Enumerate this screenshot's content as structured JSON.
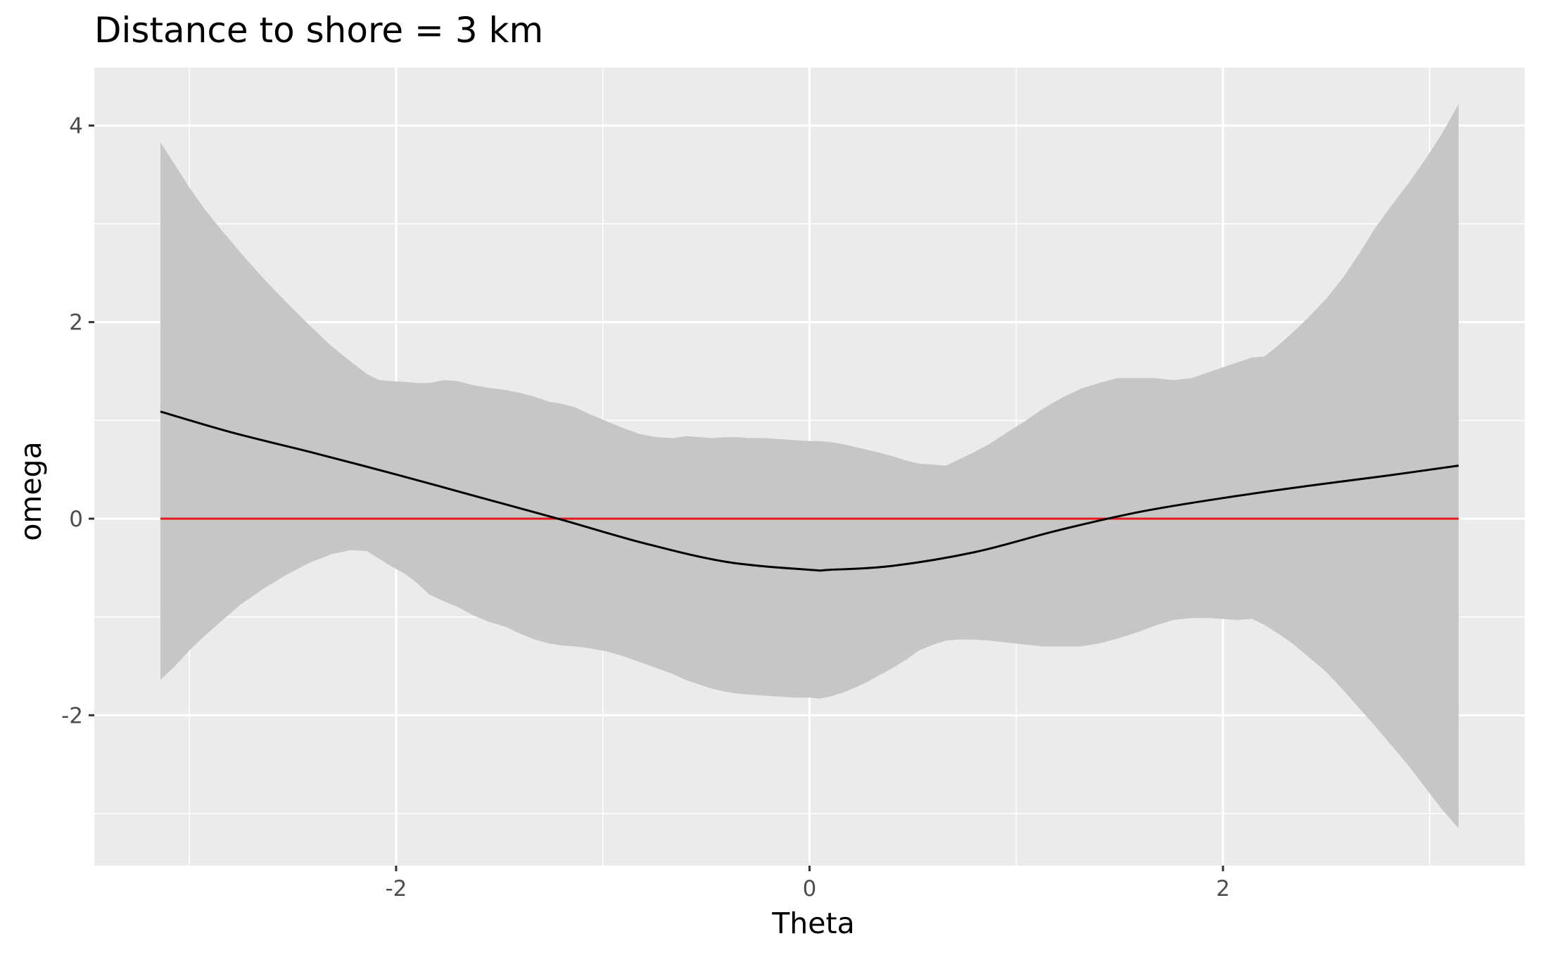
{
  "chart_data": {
    "type": "line",
    "title": "Distance to shore = 3 km",
    "xlabel": "Theta",
    "ylabel": "omega",
    "xlim": [
      -3.46,
      3.46
    ],
    "ylim": [
      -3.53,
      4.59
    ],
    "grid": true,
    "legend": "none",
    "x_ticks": [
      -2,
      0,
      2
    ],
    "x_tick_labels": [
      "-2",
      "0",
      "2"
    ],
    "y_ticks": [
      -2,
      0,
      2,
      4
    ],
    "y_tick_labels": [
      "-2",
      "0",
      "2",
      "4"
    ],
    "x_minor_ticks": [
      -3,
      -1,
      1,
      3
    ],
    "y_minor_ticks": [
      -3,
      -1,
      1,
      3
    ],
    "colors": {
      "panel": "#ebebeb",
      "grid": "#ffffff",
      "ribbon": "#c6c6c6",
      "fit_line": "#000000",
      "reference_line": "#e41a1c"
    },
    "reference_line": {
      "y": 0
    },
    "series": [
      {
        "x": [
          -3.14,
          -2.8,
          -2.4,
          -2.0,
          -1.6,
          -1.2,
          -0.8,
          -0.4,
          0.0,
          0.1,
          0.4,
          0.8,
          1.2,
          1.6,
          2.0,
          2.4,
          2.8,
          3.14
        ],
        "values": [
          1.09,
          0.88,
          0.67,
          0.45,
          0.22,
          -0.01,
          -0.25,
          -0.44,
          -0.52,
          -0.52,
          -0.48,
          -0.34,
          -0.12,
          0.07,
          0.21,
          0.33,
          0.44,
          0.54
        ]
      }
    ],
    "ribbon": {
      "x": [
        -3.14,
        -3.07,
        -3.0,
        -2.93,
        -2.85,
        -2.75,
        -2.64,
        -2.53,
        -2.42,
        -2.31,
        -2.22,
        -2.14,
        -2.08,
        -2.02,
        -1.95,
        -1.89,
        -1.84,
        -1.77,
        -1.7,
        -1.63,
        -1.55,
        -1.47,
        -1.4,
        -1.33,
        -1.26,
        -1.2,
        -1.13,
        -1.06,
        -0.98,
        -0.9,
        -0.82,
        -0.74,
        -0.66,
        -0.6,
        -0.53,
        -0.47,
        -0.41,
        -0.35,
        -0.29,
        -0.22,
        -0.15,
        -0.08,
        0.0,
        0.05,
        0.1,
        0.16,
        0.22,
        0.28,
        0.34,
        0.41,
        0.47,
        0.53,
        0.6,
        0.66,
        0.72,
        0.79,
        0.87,
        0.95,
        1.04,
        1.13,
        1.22,
        1.31,
        1.4,
        1.49,
        1.58,
        1.67,
        1.76,
        1.85,
        1.93,
        2.0,
        2.07,
        2.14,
        2.2,
        2.26,
        2.33,
        2.41,
        2.5,
        2.58,
        2.66,
        2.74,
        2.82,
        2.9,
        2.98,
        3.06,
        3.14
      ],
      "lower": [
        -1.64,
        -1.5,
        -1.34,
        -1.2,
        -1.05,
        -0.87,
        -0.71,
        -0.57,
        -0.45,
        -0.36,
        -0.32,
        -0.33,
        -0.41,
        -0.49,
        -0.57,
        -0.67,
        -0.77,
        -0.84,
        -0.9,
        -0.98,
        -1.05,
        -1.1,
        -1.17,
        -1.23,
        -1.27,
        -1.29,
        -1.3,
        -1.32,
        -1.35,
        -1.4,
        -1.46,
        -1.52,
        -1.58,
        -1.64,
        -1.69,
        -1.73,
        -1.76,
        -1.78,
        -1.79,
        -1.8,
        -1.81,
        -1.82,
        -1.82,
        -1.83,
        -1.81,
        -1.77,
        -1.72,
        -1.66,
        -1.59,
        -1.51,
        -1.43,
        -1.34,
        -1.28,
        -1.24,
        -1.23,
        -1.23,
        -1.24,
        -1.26,
        -1.28,
        -1.3,
        -1.3,
        -1.3,
        -1.27,
        -1.22,
        -1.16,
        -1.09,
        -1.03,
        -1.01,
        -1.01,
        -1.02,
        -1.03,
        -1.02,
        -1.08,
        -1.16,
        -1.26,
        -1.4,
        -1.56,
        -1.74,
        -1.93,
        -2.12,
        -2.32,
        -2.52,
        -2.74,
        -2.96,
        -3.15
      ],
      "upper": [
        3.83,
        3.6,
        3.37,
        3.16,
        2.95,
        2.7,
        2.44,
        2.2,
        1.97,
        1.75,
        1.6,
        1.47,
        1.41,
        1.4,
        1.39,
        1.38,
        1.38,
        1.41,
        1.4,
        1.36,
        1.33,
        1.31,
        1.28,
        1.24,
        1.19,
        1.17,
        1.13,
        1.06,
        0.99,
        0.92,
        0.86,
        0.83,
        0.82,
        0.84,
        0.83,
        0.82,
        0.83,
        0.83,
        0.82,
        0.82,
        0.81,
        0.8,
        0.79,
        0.79,
        0.78,
        0.76,
        0.73,
        0.7,
        0.67,
        0.63,
        0.59,
        0.56,
        0.55,
        0.54,
        0.6,
        0.67,
        0.76,
        0.87,
        0.99,
        1.12,
        1.23,
        1.32,
        1.38,
        1.43,
        1.43,
        1.43,
        1.41,
        1.43,
        1.49,
        1.54,
        1.59,
        1.64,
        1.65,
        1.75,
        1.88,
        2.04,
        2.24,
        2.45,
        2.7,
        2.97,
        3.2,
        3.42,
        3.66,
        3.92,
        4.22
      ]
    }
  }
}
